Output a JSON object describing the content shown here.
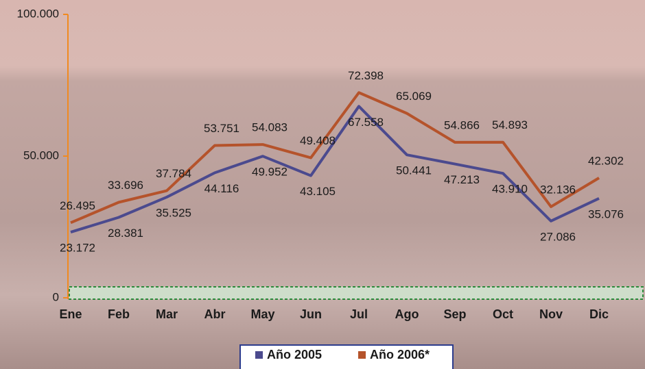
{
  "chart_data": {
    "type": "line",
    "categories": [
      "Ene",
      "Feb",
      "Mar",
      "Abr",
      "May",
      "Jun",
      "Jul",
      "Ago",
      "Sep",
      "Oct",
      "Nov",
      "Dic"
    ],
    "series": [
      {
        "name": "Año 2005",
        "color": "#4b4a8e",
        "values": [
          23172,
          28381,
          35525,
          44116,
          49952,
          43105,
          67558,
          50441,
          47213,
          43910,
          27086,
          35076
        ],
        "value_labels": [
          "23.172",
          "28.381",
          "35.525",
          "44.116",
          "49.952",
          "43.105",
          "67.558",
          "50.441",
          "47.213",
          "43.910",
          "27.086",
          "35.076"
        ]
      },
      {
        "name": "Año 2006*",
        "color": "#b5532b",
        "values": [
          26495,
          33696,
          37784,
          53751,
          54083,
          49408,
          72398,
          65069,
          54866,
          54893,
          32136,
          42302
        ],
        "value_labels": [
          "26.495",
          "33.696",
          "37.784",
          "53.751",
          "54.083",
          "49.408",
          "72.398",
          "65.069",
          "54.866",
          "54.893",
          "32.136",
          "42.302"
        ]
      }
    ],
    "ylim": [
      0,
      100000
    ],
    "yticks": [
      0,
      {
        "value": 50000,
        "label": "50.000"
      },
      {
        "value": 100000,
        "label": "100.000"
      }
    ]
  }
}
